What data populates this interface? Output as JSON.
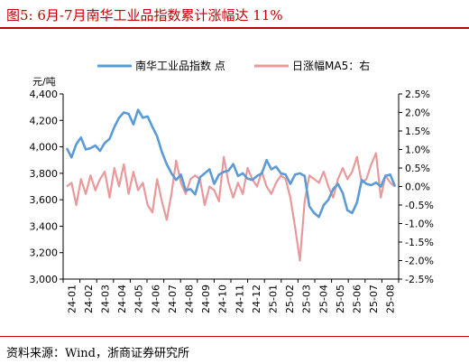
{
  "figure": {
    "title": "图5:  6月-7月南华工业品指数累计涨幅达 11%",
    "source": "资料来源：Wind，浙商证券研究所"
  },
  "colors": {
    "series1": "#5b9bd5",
    "series2": "#e8999b",
    "rule": "#c00000"
  },
  "chart_data": {
    "type": "line",
    "unit_left": "元/吨",
    "legend_position": "top-center",
    "grid": false,
    "x_labels": [
      "24-01",
      "24-02",
      "24-03",
      "24-04",
      "24-05",
      "24-06",
      "24-07",
      "24-08",
      "24-09",
      "24-10",
      "24-11",
      "24-12",
      "25-01",
      "25-02",
      "25-03",
      "25-04",
      "25-05",
      "25-06",
      "25-07",
      "25-08"
    ],
    "yaxis_left": {
      "min": 3000,
      "max": 4400,
      "ticks": [
        "3,000",
        "3,200",
        "3,400",
        "3,600",
        "3,800",
        "4,000",
        "4,200",
        "4,400"
      ]
    },
    "yaxis_right": {
      "min": -2.5,
      "max": 2.5,
      "ticks": [
        "-2.5%",
        "-2.0%",
        "-1.5%",
        "-1.0%",
        "-0.5%",
        "0.0%",
        "0.5%",
        "1.0%",
        "1.5%",
        "2.0%",
        "2.5%"
      ]
    },
    "series": [
      {
        "name": "南华工业品指数 点",
        "axis": "left",
        "values": [
          3990,
          3920,
          4020,
          4070,
          3980,
          3990,
          4010,
          3970,
          4030,
          4060,
          4150,
          4220,
          4260,
          4250,
          4170,
          4280,
          4220,
          4230,
          4150,
          4080,
          3960,
          3870,
          3800,
          3750,
          3790,
          3670,
          3680,
          3640,
          3770,
          3800,
          3830,
          3720,
          3790,
          3810,
          3820,
          3870,
          3780,
          3800,
          3760,
          3750,
          3780,
          3800,
          3900,
          3830,
          3850,
          3800,
          3790,
          3720,
          3790,
          3800,
          3780,
          3550,
          3500,
          3470,
          3560,
          3600,
          3680,
          3720,
          3650,
          3520,
          3500,
          3580,
          3750,
          3720,
          3710,
          3730,
          3700,
          3780,
          3790,
          3700
        ]
      },
      {
        "name": "日涨幅MA5：右",
        "axis": "right",
        "values": [
          0.0,
          0.1,
          -0.5,
          0.2,
          -0.2,
          0.3,
          -0.1,
          0.2,
          0.4,
          -0.3,
          0.5,
          0.0,
          0.6,
          -0.2,
          0.4,
          -0.1,
          0.1,
          -0.5,
          -0.7,
          0.2,
          -0.4,
          -0.9,
          -0.2,
          0.7,
          0.1,
          -0.2,
          0.2,
          0.3,
          0.2,
          -0.5,
          0.0,
          -0.1,
          -0.4,
          0.8,
          0.1,
          -0.3,
          0.1,
          -0.2,
          0.5,
          0.2,
          0.0,
          0.4,
          0.0,
          -0.2,
          0.1,
          0.3,
          0.2,
          -0.3,
          -1.1,
          -2.0,
          -0.4,
          0.3,
          0.2,
          0.1,
          0.4,
          0.0,
          -0.3,
          0.2,
          0.5,
          0.2,
          0.4,
          0.8,
          0.1,
          0.2,
          0.6,
          0.9,
          -0.3,
          0.3,
          0.1,
          0.0
        ]
      }
    ]
  }
}
